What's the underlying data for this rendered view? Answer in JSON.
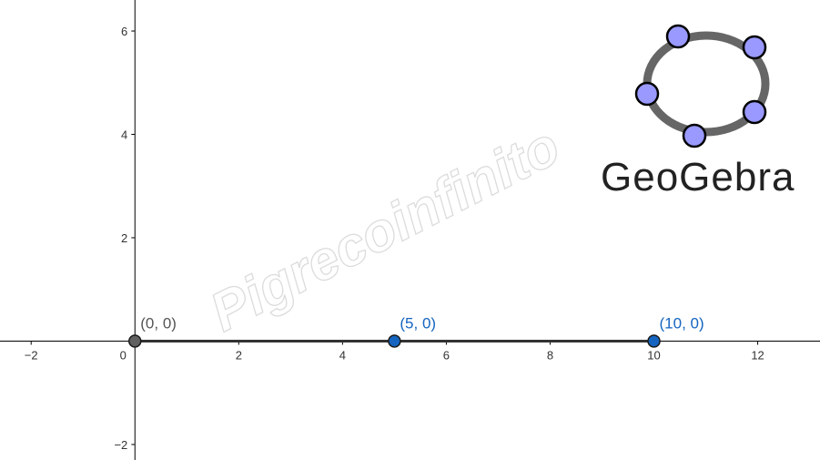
{
  "app": "GeoGebra",
  "watermark": "Pigrecoinfinito",
  "graphics": {
    "x_range": [
      -2.6,
      13.2
    ],
    "y_range": [
      -2.3,
      6.6
    ],
    "x_ticks": [
      -2,
      0,
      2,
      4,
      6,
      8,
      10,
      12
    ],
    "y_ticks": [
      -2,
      2,
      4,
      6
    ],
    "origin_label": "0",
    "axis_color": "#000000"
  },
  "segment": {
    "from": [
      0,
      0
    ],
    "to": [
      10,
      0
    ],
    "color": "#333333"
  },
  "points": [
    {
      "x": 0,
      "y": 0,
      "label": "(0, 0)",
      "fill": "#616161",
      "label_color": "#555555"
    },
    {
      "x": 5,
      "y": 0,
      "label": "(5, 0)",
      "fill": "#1565c0",
      "label_color": "#1565c0"
    },
    {
      "x": 10,
      "y": 0,
      "label": "(10, 0)",
      "fill": "#1565c0",
      "label_color": "#1565c0"
    }
  ],
  "logo": {
    "text": "GeoGebra",
    "ring_color": "#666666",
    "dot_color": "#9999ff"
  }
}
